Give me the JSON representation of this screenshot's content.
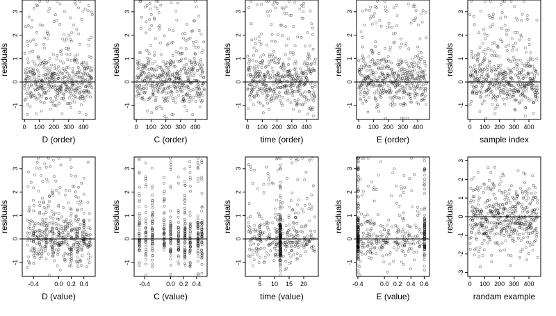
{
  "chart_data": [
    {
      "type": "scatter",
      "xlabel": "D (order)",
      "ylabel": "residuals",
      "xlim": [
        -15,
        480
      ],
      "ylim": [
        -1.6,
        3.5
      ],
      "xticks": [
        0,
        100,
        200,
        300,
        400
      ],
      "xtick_labels": [
        "0",
        "100",
        "200",
        "300",
        "400"
      ],
      "yticks": [
        -1,
        0,
        1,
        2,
        3
      ],
      "ytick_labels": [
        "-1",
        "0",
        "1",
        "2",
        "3"
      ],
      "hline": 0,
      "n": 460,
      "pattern": "order",
      "seed": 11
    },
    {
      "type": "scatter",
      "xlabel": "C (order)",
      "ylabel": "residuals",
      "xlim": [
        -15,
        480
      ],
      "ylim": [
        -1.6,
        3.5
      ],
      "xticks": [
        0,
        100,
        200,
        300,
        400
      ],
      "xtick_labels": [
        "0",
        "100",
        "200",
        "300",
        "400"
      ],
      "yticks": [
        -1,
        0,
        1,
        2,
        3
      ],
      "ytick_labels": [
        "-1",
        "0",
        "1",
        "2",
        "3"
      ],
      "hline": 0,
      "n": 460,
      "pattern": "order",
      "seed": 23
    },
    {
      "type": "scatter",
      "xlabel": "time (order)",
      "ylabel": "residuals",
      "xlim": [
        -15,
        480
      ],
      "ylim": [
        -1.6,
        3.5
      ],
      "xticks": [
        0,
        100,
        200,
        300,
        400
      ],
      "xtick_labels": [
        "0",
        "100",
        "200",
        "300",
        "400"
      ],
      "yticks": [
        -1,
        0,
        1,
        2,
        3
      ],
      "ytick_labels": [
        "-1",
        "0",
        "1",
        "2",
        "3"
      ],
      "hline": 0,
      "n": 460,
      "pattern": "order",
      "seed": 37
    },
    {
      "type": "scatter",
      "xlabel": "E (order)",
      "ylabel": "residuals",
      "xlim": [
        -15,
        480
      ],
      "ylim": [
        -1.6,
        3.5
      ],
      "xticks": [
        0,
        100,
        200,
        300,
        400
      ],
      "xtick_labels": [
        "0",
        "100",
        "200",
        "300",
        "400"
      ],
      "yticks": [
        -1,
        0,
        1,
        2,
        3
      ],
      "ytick_labels": [
        "-1",
        "0",
        "1",
        "2",
        "3"
      ],
      "hline": 0,
      "n": 460,
      "pattern": "order",
      "seed": 41
    },
    {
      "type": "scatter",
      "xlabel": "sample index",
      "ylabel": "residuals",
      "xlim": [
        -15,
        480
      ],
      "ylim": [
        -1.6,
        3.5
      ],
      "xticks": [
        0,
        100,
        200,
        300,
        400
      ],
      "xtick_labels": [
        "0",
        "100",
        "200",
        "300",
        "400"
      ],
      "yticks": [
        -1,
        0,
        1,
        2,
        3
      ],
      "ytick_labels": [
        "-1",
        "0",
        "1",
        "2",
        "3"
      ],
      "hline": 0,
      "n": 460,
      "pattern": "order",
      "seed": 53
    },
    {
      "type": "scatter",
      "xlabel": "D (value)",
      "ylabel": "residuals",
      "xlim": [
        -0.58,
        0.58
      ],
      "ylim": [
        -1.6,
        3.5
      ],
      "xticks": [
        -0.4,
        0.0,
        0.2,
        0.4
      ],
      "xtick_labels": [
        "-0.4",
        "0.0",
        "0.2",
        "0.4"
      ],
      "yticks": [
        -1,
        0,
        1,
        2,
        3
      ],
      "ytick_labels": [
        "-1",
        "0",
        "1",
        "2",
        "3"
      ],
      "hline": 0,
      "n": 460,
      "pattern": "spread",
      "seed": 61
    },
    {
      "type": "scatter",
      "xlabel": "C (value)",
      "ylabel": "residuals",
      "xlim": [
        -0.56,
        0.56
      ],
      "ylim": [
        -1.6,
        3.5
      ],
      "xticks": [
        -0.4,
        0.0,
        0.2,
        0.4
      ],
      "xtick_labels": [
        "-0.4",
        "0.0",
        "0.2",
        "0.4"
      ],
      "yticks": [
        -1,
        0,
        1,
        2,
        3
      ],
      "ytick_labels": [
        "-1",
        "0",
        "1",
        "2",
        "3"
      ],
      "hline": 0,
      "n": 460,
      "pattern": "columns",
      "columns": [
        -0.48,
        -0.38,
        -0.28,
        -0.1,
        0.0,
        0.12,
        0.22,
        0.3,
        0.42,
        0.48
      ],
      "seed": 71
    },
    {
      "type": "scatter",
      "xlabel": "time (value)",
      "ylabel": "residuals",
      "xlim": [
        0,
        25
      ],
      "ylim": [
        -1.6,
        3.5
      ],
      "xticks": [
        5,
        10,
        15,
        20
      ],
      "xtick_labels": [
        "5",
        "10",
        "15",
        "20"
      ],
      "yticks": [
        -1,
        0,
        1,
        2,
        3
      ],
      "ytick_labels": [
        "-1",
        "0",
        "1",
        "2",
        "3"
      ],
      "hline": 0,
      "n": 460,
      "pattern": "time",
      "seed": 83
    },
    {
      "type": "scatter",
      "xlabel": "E (value)",
      "ylabel": "residuals",
      "xlim": [
        -0.42,
        0.68
      ],
      "ylim": [
        -1.6,
        3.5
      ],
      "xticks": [
        -0.4,
        0.0,
        0.2,
        0.4,
        0.6
      ],
      "xtick_labels": [
        "-0.4",
        "0.0",
        "0.2",
        "0.4",
        "0.6"
      ],
      "yticks": [
        -1,
        0,
        1,
        2,
        3
      ],
      "ytick_labels": [
        "-1",
        "0",
        "1",
        "2",
        "3"
      ],
      "hline": 0,
      "n": 460,
      "pattern": "edges",
      "seed": 97
    },
    {
      "type": "scatter",
      "xlabel": "randam example",
      "ylabel": "residuals",
      "xlim": [
        -15,
        480
      ],
      "ylim": [
        -3.2,
        3.2
      ],
      "xticks": [
        0,
        100,
        200,
        300,
        400
      ],
      "xtick_labels": [
        "0",
        "100",
        "200",
        "300",
        "400"
      ],
      "yticks": [
        -3,
        -2,
        -1,
        0,
        1,
        2,
        3
      ],
      "ytick_labels": [
        "-3",
        "-2",
        "-1",
        "0",
        "1",
        "2",
        "3"
      ],
      "hline": 0,
      "n": 460,
      "pattern": "normal",
      "seed": 103
    }
  ]
}
